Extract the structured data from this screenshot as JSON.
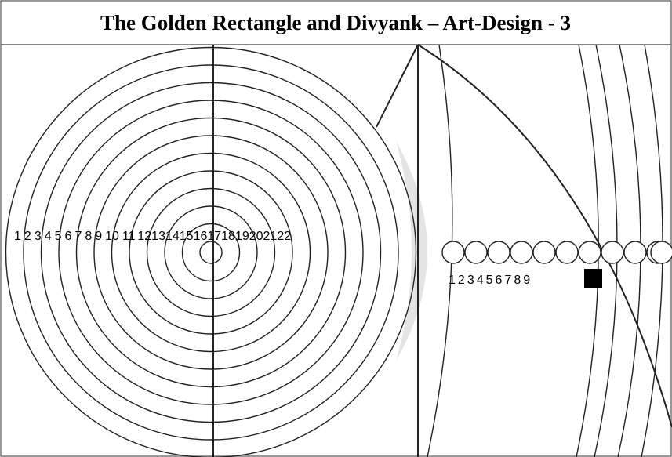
{
  "title": "The Golden Rectangle and Divyank – Art-Design - 3",
  "left_labels": [
    "1",
    "2",
    "3",
    "4",
    "5",
    "6",
    "7",
    "8",
    "9",
    "10",
    "11",
    "12",
    "13",
    "14",
    "15",
    "16",
    "17",
    "18",
    "19",
    "20",
    "21",
    "22"
  ],
  "right_labels": [
    "1",
    "2",
    "3",
    "4",
    "5",
    "6",
    "7",
    "8",
    "9"
  ]
}
